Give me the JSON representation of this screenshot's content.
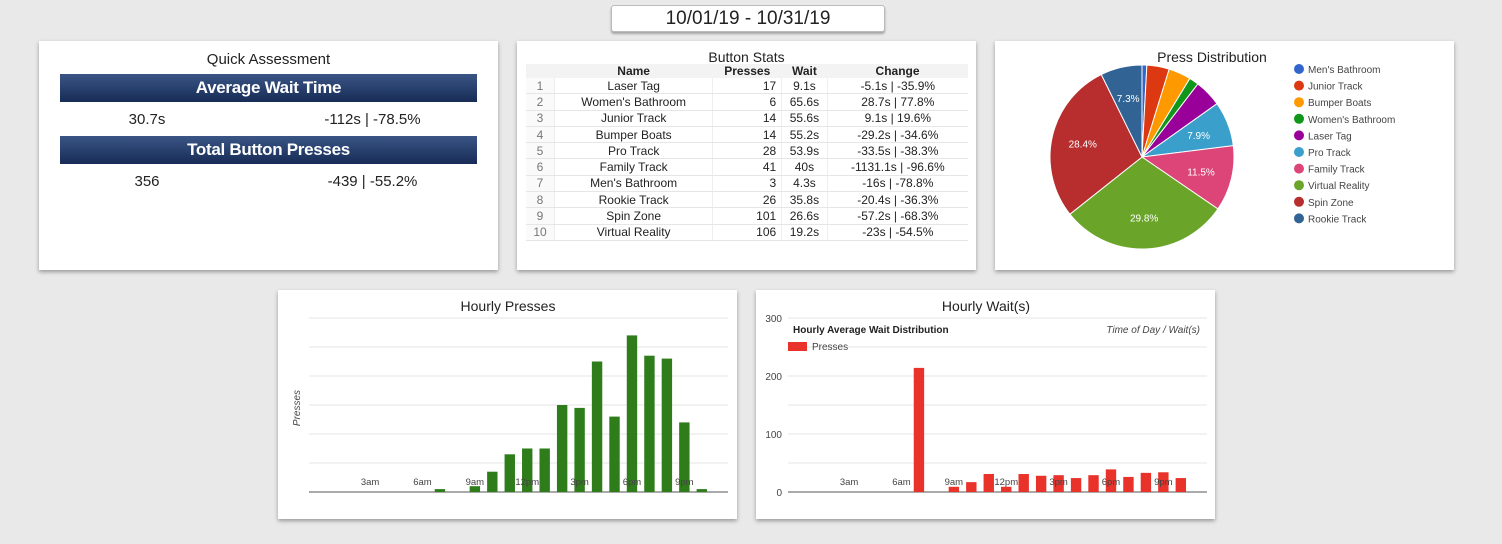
{
  "date_range": "10/01/19 - 10/31/19",
  "quick": {
    "title": "Quick Assessment",
    "wait_label": "Average Wait Time",
    "wait_value": "30.7s",
    "wait_change": "-112s | -78.5%",
    "presses_label": "Total Button Presses",
    "presses_value": "356",
    "presses_change": "-439 | -55.2%"
  },
  "stats": {
    "title": "Button Stats",
    "columns": [
      "",
      "Name",
      "Presses",
      "Wait",
      "Change"
    ],
    "rows": [
      [
        "1",
        "Laser Tag",
        "17",
        "9.1s",
        "-5.1s | -35.9%"
      ],
      [
        "2",
        "Women's Bathroom",
        "6",
        "65.6s",
        "28.7s | 77.8%"
      ],
      [
        "3",
        "Junior Track",
        "14",
        "55.6s",
        "9.1s | 19.6%"
      ],
      [
        "4",
        "Bumper Boats",
        "14",
        "55.2s",
        "-29.2s | -34.6%"
      ],
      [
        "5",
        "Pro Track",
        "28",
        "53.9s",
        "-33.5s | -38.3%"
      ],
      [
        "6",
        "Family Track",
        "41",
        "40s",
        "-1131.1s | -96.6%"
      ],
      [
        "7",
        "Men's Bathroom",
        "3",
        "4.3s",
        "-16s | -78.8%"
      ],
      [
        "8",
        "Rookie Track",
        "26",
        "35.8s",
        "-20.4s | -36.3%"
      ],
      [
        "9",
        "Spin Zone",
        "101",
        "26.6s",
        "-57.2s | -68.3%"
      ],
      [
        "10",
        "Virtual Reality",
        "106",
        "19.2s",
        "-23s | -54.5%"
      ]
    ]
  },
  "chart_data": [
    {
      "type": "pie",
      "title": "Press Distribution",
      "legend": "right",
      "labels": [
        "Men's Bathroom",
        "Junior Track",
        "Bumper Boats",
        "Women's Bathroom",
        "Laser Tag",
        "Pro Track",
        "Family Track",
        "Virtual Reality",
        "Spin Zone",
        "Rookie Track"
      ],
      "values": [
        3,
        14,
        14,
        6,
        17,
        28,
        41,
        106,
        101,
        26
      ],
      "colors": [
        "#3366cc",
        "#dc3912",
        "#ff9900",
        "#109618",
        "#990099",
        "#3b9fcc",
        "#dd4477",
        "#6aa52a",
        "#b82e2e",
        "#316395"
      ],
      "slice_labels": [
        "",
        "",
        "",
        "",
        "",
        "7.9%",
        "11.5%",
        "29.8%",
        "28.4%",
        "7.3%"
      ]
    },
    {
      "type": "bar",
      "title": "Hourly Presses",
      "ylabel": "Presses",
      "color": "#2e7d1a",
      "ylim": [
        0,
        60
      ],
      "grid": true,
      "x": [
        0,
        1,
        2,
        3,
        4,
        5,
        6,
        7,
        8,
        9,
        10,
        11,
        12,
        13,
        14,
        15,
        16,
        17,
        18,
        19,
        20,
        21,
        22,
        23
      ],
      "values": [
        0,
        0,
        0,
        0,
        0,
        0,
        0,
        1,
        0,
        2,
        7,
        13,
        15,
        15,
        30,
        29,
        45,
        26,
        54,
        47,
        46,
        24,
        1,
        0
      ],
      "tick_labels": {
        "3": "3am",
        "6": "6am",
        "9": "9am",
        "12": "12pm",
        "15": "3pm",
        "18": "6pm",
        "21": "9pm"
      }
    },
    {
      "type": "bar",
      "title": "Hourly Wait(s)",
      "subtitle": "Hourly Average Wait Distribution",
      "axis_note": "Time of Day / Wait(s)",
      "color": "#e8322a",
      "ylim": [
        0,
        300
      ],
      "yticks": [
        "0",
        "100",
        "200",
        "300"
      ],
      "grid": true,
      "series": [
        {
          "name": "Presses"
        }
      ],
      "x": [
        0,
        1,
        2,
        3,
        4,
        5,
        6,
        7,
        8,
        9,
        10,
        11,
        12,
        13,
        14,
        15,
        16,
        17,
        18,
        19,
        20,
        21,
        22,
        23
      ],
      "values": [
        0,
        0,
        0,
        0,
        0,
        0,
        0,
        214,
        0,
        9,
        17,
        31,
        9,
        31,
        28,
        29,
        24,
        29,
        39,
        26,
        33,
        34,
        24,
        0
      ],
      "tick_labels": {
        "3": "3am",
        "6": "6am",
        "9": "9am",
        "12": "12pm",
        "15": "3pm",
        "18": "6pm",
        "21": "9pm"
      }
    }
  ]
}
